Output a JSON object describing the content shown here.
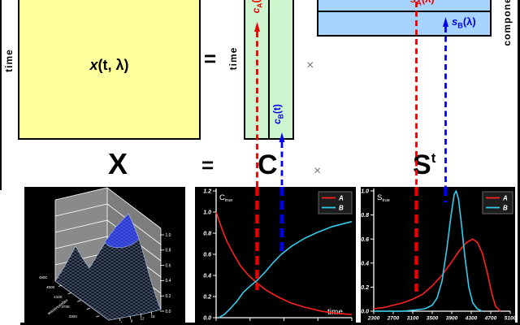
{
  "top_row": {
    "time_left": "time",
    "x_main": "x",
    "x_rest": "(t, λ)",
    "equals": "=",
    "time_mid": "time",
    "c_a": {
      "base": "c",
      "sub": "A",
      "rest": "(t)"
    },
    "c_b": {
      "base": "c",
      "sub": "B",
      "rest": "(t)"
    },
    "times": "×",
    "s_a": {
      "base": "s",
      "sub": "A",
      "rest": "(λ)"
    },
    "s_b": {
      "base": "s",
      "sub": "B",
      "rest": "(λ)"
    },
    "components_label": "components"
  },
  "equation_row": {
    "X": "X",
    "equals": "=",
    "C": "C",
    "times": "×",
    "S_base": "S",
    "S_sup": "t"
  },
  "colors": {
    "red": "#e80000",
    "blue": "#0000ee",
    "cyan": "#33ccee",
    "matrix_yellow": "#ffff9e",
    "matrix_green": "#cdf4cd",
    "matrix_blue": "#a6d4ff"
  },
  "chart_data": [
    {
      "id": "surface3d",
      "type": "surface",
      "description": "3D wireframe mesh of x(t,wavenumber) with a small peak and a large blue-capped peak on gray axis walls",
      "z_ticks": [
        "1.0",
        "0.8",
        "0.6",
        "0.4",
        "0.2",
        "0.0"
      ],
      "wavenumber_ticks": [
        "4900",
        "4500",
        "4100",
        "3700",
        "3300"
      ],
      "time_ticks": [
        "4",
        "8",
        "12",
        "16"
      ],
      "axis_label": "wavenumber"
    },
    {
      "id": "c_true",
      "type": "line",
      "title_base": "C",
      "title_sub": "true",
      "xlabel": "time",
      "x_range": [
        0,
        1
      ],
      "y_range": [
        0,
        1.2
      ],
      "y_ticks": [
        "0.0",
        "0.2",
        "0.4",
        "0.6",
        "0.8",
        "1.0",
        "1.2"
      ],
      "n_x_minor_ticks": 5,
      "legend_position": "top-right",
      "series": [
        {
          "name": "A",
          "color": "#ff2020",
          "x": [
            0,
            0.04,
            0.08,
            0.13,
            0.18,
            0.24,
            0.3,
            0.37,
            0.45,
            0.55,
            0.65,
            0.78,
            0.9,
            1.0
          ],
          "y": [
            1.0,
            0.85,
            0.72,
            0.6,
            0.49,
            0.4,
            0.33,
            0.26,
            0.2,
            0.14,
            0.1,
            0.06,
            0.04,
            0.03
          ]
        },
        {
          "name": "B",
          "color": "#33ccee",
          "x": [
            0.02,
            0.06,
            0.1,
            0.15,
            0.2,
            0.26,
            0.3,
            0.36,
            0.42,
            0.48,
            0.56,
            0.65,
            0.75,
            0.85,
            1.0
          ],
          "y": [
            0.0,
            0.03,
            0.08,
            0.15,
            0.24,
            0.31,
            0.35,
            0.43,
            0.52,
            0.6,
            0.68,
            0.75,
            0.81,
            0.86,
            0.91
          ]
        }
      ]
    },
    {
      "id": "s_true",
      "type": "line",
      "title_base": "S",
      "title_sub": "true",
      "xlabel": "",
      "x_range": [
        2300,
        5100
      ],
      "y_range": [
        0,
        1.0
      ],
      "y_ticks": [
        "0.0",
        "0.2",
        "0.4",
        "0.6",
        "0.8",
        "1.0"
      ],
      "x_ticks": [
        2300,
        2700,
        3100,
        3500,
        3900,
        4300,
        4700,
        5100
      ],
      "legend_position": "top-right",
      "series": [
        {
          "name": "A",
          "color": "#ff2020",
          "x": [
            2300,
            2500,
            2700,
            2900,
            3100,
            3300,
            3500,
            3700,
            3900,
            4050,
            4200,
            4330,
            4430,
            4530,
            4630,
            4720,
            4800,
            4900
          ],
          "y": [
            0.02,
            0.03,
            0.05,
            0.07,
            0.1,
            0.14,
            0.21,
            0.3,
            0.41,
            0.5,
            0.57,
            0.6,
            0.57,
            0.48,
            0.32,
            0.15,
            0.04,
            0.0
          ]
        },
        {
          "name": "B",
          "color": "#33ccee",
          "x": [
            2300,
            2900,
            3150,
            3350,
            3500,
            3600,
            3700,
            3800,
            3880,
            3950,
            3990,
            4040,
            4100,
            4170,
            4250,
            4330,
            4420,
            4520
          ],
          "y": [
            0.0,
            0.0,
            0.01,
            0.02,
            0.05,
            0.11,
            0.25,
            0.52,
            0.78,
            0.97,
            1.0,
            0.93,
            0.72,
            0.45,
            0.2,
            0.07,
            0.02,
            0.0
          ]
        }
      ]
    }
  ]
}
